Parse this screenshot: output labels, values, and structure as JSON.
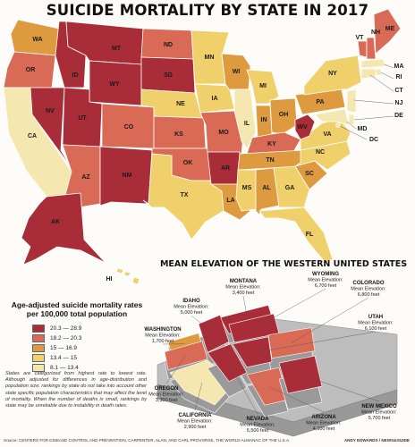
{
  "title": "SUICIDE MORTALITY BY STATE IN 2017",
  "colors": {
    "c1": "#a82d38",
    "c2": "#d96a55",
    "c3": "#de9a3e",
    "c4": "#f0d06a",
    "c5": "#f4e7b0",
    "water": "#fdfcf8",
    "elev_base": "#bfbfbf"
  },
  "states": [
    {
      "abbr": "WA",
      "bin": 3
    },
    {
      "abbr": "OR",
      "bin": 2
    },
    {
      "abbr": "CA",
      "bin": 5
    },
    {
      "abbr": "NV",
      "bin": 1
    },
    {
      "abbr": "ID",
      "bin": 1
    },
    {
      "abbr": "MT",
      "bin": 1
    },
    {
      "abbr": "WY",
      "bin": 1
    },
    {
      "abbr": "UT",
      "bin": 1
    },
    {
      "abbr": "AZ",
      "bin": 2
    },
    {
      "abbr": "CO",
      "bin": 2
    },
    {
      "abbr": "NM",
      "bin": 1
    },
    {
      "abbr": "ND",
      "bin": 2
    },
    {
      "abbr": "SD",
      "bin": 1
    },
    {
      "abbr": "NE",
      "bin": 4
    },
    {
      "abbr": "KS",
      "bin": 2
    },
    {
      "abbr": "OK",
      "bin": 2
    },
    {
      "abbr": "TX",
      "bin": 4
    },
    {
      "abbr": "MN",
      "bin": 4
    },
    {
      "abbr": "IA",
      "bin": 4
    },
    {
      "abbr": "MO",
      "bin": 2
    },
    {
      "abbr": "AR",
      "bin": 1
    },
    {
      "abbr": "LA",
      "bin": 3
    },
    {
      "abbr": "WI",
      "bin": 3
    },
    {
      "abbr": "IL",
      "bin": 5
    },
    {
      "abbr": "MI",
      "bin": 4
    },
    {
      "abbr": "IN",
      "bin": 3
    },
    {
      "abbr": "OH",
      "bin": 3
    },
    {
      "abbr": "KY",
      "bin": 2
    },
    {
      "abbr": "TN",
      "bin": 3
    },
    {
      "abbr": "MS",
      "bin": 4
    },
    {
      "abbr": "AL",
      "bin": 3
    },
    {
      "abbr": "GA",
      "bin": 4
    },
    {
      "abbr": "FL",
      "bin": 4
    },
    {
      "abbr": "SC",
      "bin": 3
    },
    {
      "abbr": "NC",
      "bin": 4
    },
    {
      "abbr": "VA",
      "bin": 4
    },
    {
      "abbr": "WV",
      "bin": 1
    },
    {
      "abbr": "PA",
      "bin": 3
    },
    {
      "abbr": "NY",
      "bin": 4
    },
    {
      "abbr": "VT",
      "bin": 2
    },
    {
      "abbr": "NH",
      "bin": 2
    },
    {
      "abbr": "ME",
      "bin": 2
    },
    {
      "abbr": "MA",
      "bin": 5
    },
    {
      "abbr": "RI",
      "bin": 5
    },
    {
      "abbr": "CT",
      "bin": 5
    },
    {
      "abbr": "NJ",
      "bin": 5
    },
    {
      "abbr": "DE",
      "bin": 5
    },
    {
      "abbr": "MD",
      "bin": 5
    },
    {
      "abbr": "DC",
      "bin": 5
    },
    {
      "abbr": "AK",
      "bin": 1
    },
    {
      "abbr": "HI",
      "bin": 4
    }
  ],
  "legend": {
    "title": "Age-adjusted suicide mortality rates per 100,000 total population",
    "bins": [
      {
        "label": "20.3 — 28.9"
      },
      {
        "label": "18.2 — 20.3"
      },
      {
        "label": "15 — 16.9"
      },
      {
        "label": "13.4 — 15"
      },
      {
        "label": "8.1 — 13.4"
      }
    ]
  },
  "note": "States are categorized from highest rate to lowest rate. Although adjusted for differences in age-distribution and population size, rankings by state do not take into account other state specific population characteristics that may affect the level of mortality. When the number of deaths is small, rankings by state may be unreliable due to instability in death rates.",
  "elevation": {
    "title": "MEAN ELEVATION OF THE WESTERN UNITED STATES",
    "caption": "Mean Elevation:",
    "states": [
      {
        "name": "MONTANA",
        "feet": 3400,
        "text": "3,400 feet"
      },
      {
        "name": "WYOMING",
        "feet": 6700,
        "text": "6,700 feet"
      },
      {
        "name": "COLORADO",
        "feet": 6800,
        "text": "6,800 feet"
      },
      {
        "name": "IDAHO",
        "feet": 5000,
        "text": "5,000 feet"
      },
      {
        "name": "WASHINGTON",
        "feet": 1700,
        "text": "1,700 feet"
      },
      {
        "name": "UTAH",
        "feet": 6100,
        "text": "6,100 feet"
      },
      {
        "name": "OREGON",
        "feet": 3300,
        "text": "3,300 feet"
      },
      {
        "name": "CALIFORNIA",
        "feet": 2900,
        "text": "2,900 feet"
      },
      {
        "name": "NEVADA",
        "feet": 5500,
        "text": "5,500 feet"
      },
      {
        "name": "ARIZONA",
        "feet": 4100,
        "text": "4,100 feet"
      },
      {
        "name": "NEW MEXICO",
        "feet": 5700,
        "text": "5,700 feet"
      }
    ]
  },
  "source": "Source: CENTERS FOR DISEASE CONTROL AND PREVENTION, CARPENTER, ALAN, AND CARL PROVORSE, THE WORLD ALMANAC OF THE U.S.A.",
  "credit": "ANDY EDWARDS / NEWS&GUIDE"
}
